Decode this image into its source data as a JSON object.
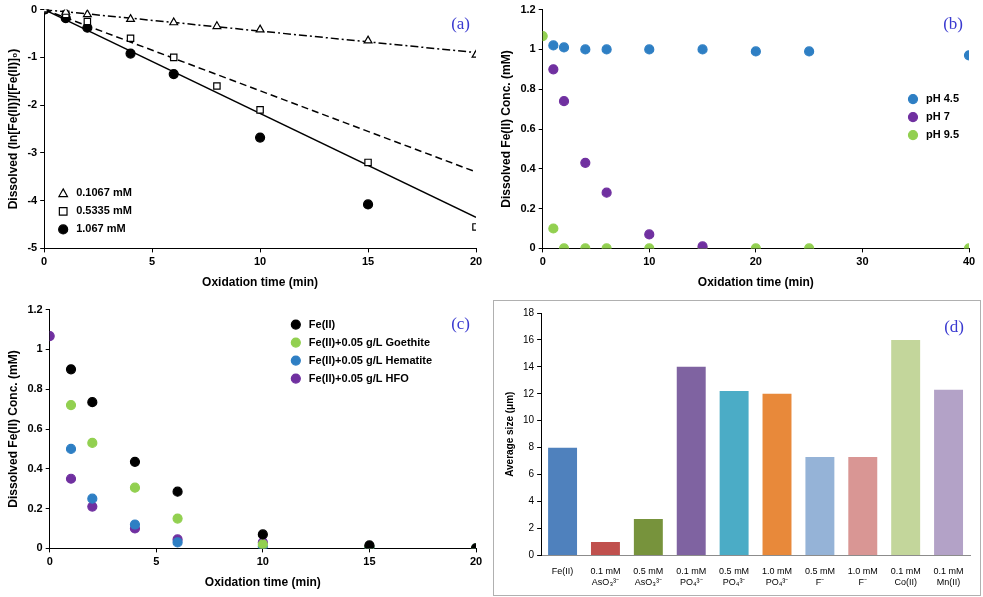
{
  "chart_data": [
    {
      "type": "scatter",
      "annotation": "(a)",
      "x_label": "Oxidation time (min)",
      "y_label": "Dissolved (ln[Fe(II)]/[Fe(II)]₀)",
      "xlim": [
        0,
        20
      ],
      "xticks": [
        0,
        5,
        10,
        15,
        20
      ],
      "ylim": [
        -5,
        0
      ],
      "yticks": [
        -5,
        -4,
        -3,
        -2,
        -1,
        0
      ],
      "grid": false,
      "legend": "lower left",
      "series": [
        {
          "name": "0.1067 mM",
          "color": "#000000",
          "marker": "triangle-open",
          "line_style": "dashdot",
          "x": [
            0,
            1,
            2,
            4,
            6,
            8,
            10,
            15,
            20
          ],
          "values": [
            0,
            -0.05,
            -0.1,
            -0.2,
            -0.27,
            -0.35,
            -0.42,
            -0.65,
            -0.95
          ],
          "fit_x": [
            0,
            20
          ],
          "fit_values": [
            0,
            -0.9
          ]
        },
        {
          "name": "0.5335 mM",
          "color": "#000000",
          "marker": "square-open",
          "line_style": "dashed",
          "x": [
            0,
            1,
            2,
            4,
            6,
            8,
            10,
            15,
            20
          ],
          "values": [
            0,
            -0.1,
            -0.25,
            -0.6,
            -1.0,
            -1.6,
            -2.1,
            -3.2,
            -4.55
          ],
          "fit_x": [
            0,
            20
          ],
          "fit_values": [
            0,
            -3.4
          ]
        },
        {
          "name": "1.067 mM",
          "color": "#000000",
          "marker": "circle",
          "line_style": "solid",
          "x": [
            0,
            1,
            2,
            4,
            6,
            10,
            15
          ],
          "values": [
            0,
            -0.18,
            -0.38,
            -0.92,
            -1.35,
            -2.68,
            -4.08
          ],
          "fit_x": [
            0,
            20
          ],
          "fit_values": [
            0,
            -4.35
          ]
        }
      ]
    },
    {
      "type": "scatter",
      "annotation": "(b)",
      "x_label": "Oxidation time (min)",
      "y_label": "Dissolved Fe(II) Conc. (mM)",
      "xlim": [
        0,
        40
      ],
      "xticks": [
        0,
        10,
        20,
        30,
        40
      ],
      "ylim": [
        0,
        1.2
      ],
      "yticks": [
        0,
        0.2,
        0.4,
        0.6,
        0.8,
        1,
        1.2
      ],
      "grid": false,
      "legend": "right",
      "series": [
        {
          "name": "pH 4.5",
          "color": "#2e7fc4",
          "marker": "circle",
          "x": [
            1,
            2,
            4,
            6,
            10,
            15,
            20,
            25,
            40
          ],
          "values": [
            1.02,
            1.01,
            1.0,
            1.0,
            1.0,
            1.0,
            0.99,
            0.99,
            0.97
          ]
        },
        {
          "name": "pH 7",
          "color": "#7030a0",
          "marker": "circle",
          "x": [
            1,
            2,
            4,
            6,
            10,
            15
          ],
          "values": [
            0.9,
            0.74,
            0.43,
            0.28,
            0.07,
            0.01
          ]
        },
        {
          "name": "pH 9.5",
          "color": "#92d050",
          "marker": "circle",
          "x": [
            0,
            1,
            2,
            4,
            6,
            10,
            15,
            20,
            25,
            40
          ],
          "values": [
            1.067,
            0.1,
            0,
            0,
            0,
            0,
            0,
            0,
            0,
            0
          ]
        }
      ]
    },
    {
      "type": "scatter",
      "annotation": "(c)",
      "x_label": "Oxidation time (min)",
      "y_label": "Dissolved Fe(II) Conc. (mM)",
      "xlim": [
        0,
        20
      ],
      "xticks": [
        0,
        5,
        10,
        15,
        20
      ],
      "ylim": [
        0,
        1.2
      ],
      "yticks": [
        0,
        0.2,
        0.4,
        0.6,
        0.8,
        1,
        1.2
      ],
      "grid": false,
      "legend": "upper right",
      "series": [
        {
          "name": "Fe(II)",
          "color": "#000000",
          "marker": "circle",
          "x": [
            1,
            2,
            4,
            6,
            10,
            15,
            20
          ],
          "values": [
            0.9,
            0.735,
            0.435,
            0.285,
            0.07,
            0.015,
            0
          ]
        },
        {
          "name": "Fe(II)+0.05 g/L Goethite",
          "color": "#92d050",
          "marker": "circle",
          "x": [
            1,
            2,
            4,
            6,
            10,
            15,
            20
          ],
          "values": [
            0.72,
            0.53,
            0.305,
            0.15,
            0.02,
            0.01,
            0
          ]
        },
        {
          "name": "Fe(II)+0.05 g/L Hematite",
          "color": "#2e7fc4",
          "marker": "circle",
          "x": [
            1,
            2,
            4,
            6,
            10,
            15,
            20
          ],
          "values": [
            0.5,
            0.25,
            0.12,
            0.03,
            0.01,
            0.005,
            0
          ]
        },
        {
          "name": "Fe(II)+0.05 g/L HFO",
          "color": "#7030a0",
          "marker": "circle",
          "x": [
            0,
            1,
            2,
            4,
            6,
            10,
            15,
            20
          ],
          "values": [
            1.067,
            0.35,
            0.21,
            0.1,
            0.045,
            0.03,
            0.01,
            0
          ]
        }
      ]
    },
    {
      "type": "bar",
      "annotation": "(d)",
      "y_label": "Average size (μm)",
      "categories": [
        "Fe(II)",
        "0.1 mM AsO₃³⁻",
        "0.5 mM AsO₃³⁻",
        "0.1 mM PO₄³⁻",
        "0.5 mM PO₄³⁻",
        "1.0 mM PO₄³⁻",
        "0.5 mM F⁻",
        "1.0 mM F⁻",
        "0.1 mM Co(II)",
        "0.1 mM Mn(II)"
      ],
      "values": [
        8.0,
        1.0,
        2.7,
        14.0,
        12.2,
        12.0,
        7.3,
        7.3,
        16.0,
        12.3
      ],
      "colors": [
        "#4f81bd",
        "#c0504d",
        "#77933c",
        "#7f63a1",
        "#4bacc6",
        "#e8893a",
        "#95b3d7",
        "#d99694",
        "#c3d69b",
        "#b3a2c7"
      ],
      "ylim": [
        0,
        18
      ],
      "yticks": [
        0,
        2,
        4,
        6,
        8,
        10,
        12,
        14,
        16,
        18
      ],
      "grid": false
    }
  ]
}
